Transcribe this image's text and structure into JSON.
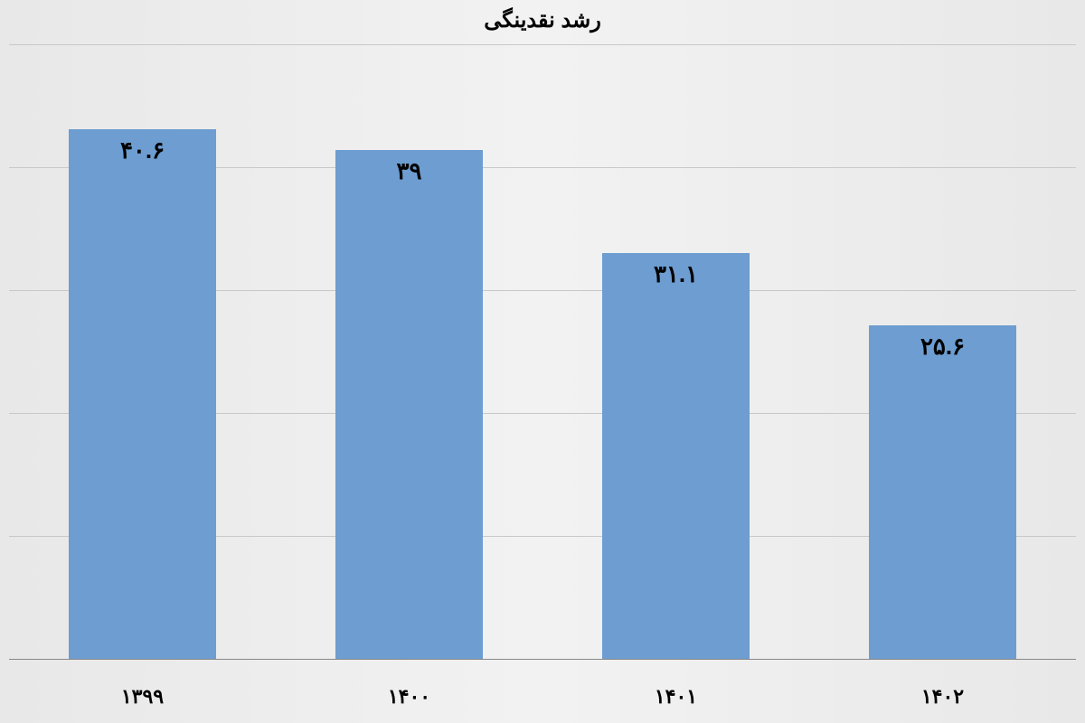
{
  "chart": {
    "type": "bar",
    "title": "رشد نقدینگی",
    "title_fontsize": 24,
    "categories": [
      "۱۳۹۹",
      "۱۴۰۰",
      "۱۴۰۱",
      "۱۴۰۲"
    ],
    "values": [
      40.6,
      39,
      31.1,
      25.6
    ],
    "value_labels": [
      "۴۰.۶",
      "۳۹",
      "۳۱.۱",
      "۲۵.۶"
    ],
    "bar_color": "#6d9dd1",
    "background_gradient_start": "#e8e8e8",
    "background_gradient_mid": "#f2f2f2",
    "grid_color": "#c8c8c8",
    "axis_color": "#888888",
    "ylim": [
      0,
      47
    ],
    "gridline_values": [
      0,
      9.4,
      18.8,
      28.2,
      37.6,
      47
    ],
    "bar_width_ratio": 0.55,
    "label_fontsize": 26,
    "xlabel_fontsize": 22,
    "text_color": "#000000"
  }
}
